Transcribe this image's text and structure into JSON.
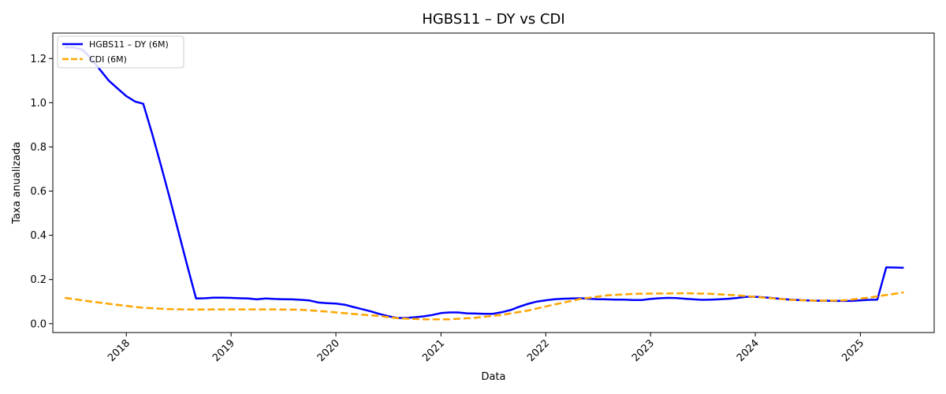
{
  "chart_data": {
    "type": "line",
    "title": "HGBS11 – DY vs CDI",
    "xlabel": "Data",
    "ylabel": "Taxa anualizada",
    "xlim": [
      "2017-04-20",
      "2025-09-15"
    ],
    "ylim": [
      -0.04,
      1.315
    ],
    "x_ticks": [
      "2018",
      "2019",
      "2020",
      "2021",
      "2022",
      "2023",
      "2024",
      "2025"
    ],
    "y_ticks": [
      "0.0",
      "0.2",
      "0.4",
      "0.6",
      "0.8",
      "1.0",
      "1.2"
    ],
    "grid": false,
    "legend_position": "top-left",
    "series": [
      {
        "name": "HGBS11 – DY (6M)",
        "color": "#0000ff",
        "style": "solid",
        "points": [
          [
            "2017-06-01",
            1.25
          ],
          [
            "2017-07-01",
            1.25
          ],
          [
            "2017-08-01",
            1.24
          ],
          [
            "2017-09-01",
            1.2
          ],
          [
            "2017-10-01",
            1.15
          ],
          [
            "2017-11-01",
            1.1
          ],
          [
            "2017-12-01",
            1.065
          ],
          [
            "2018-01-01",
            1.03
          ],
          [
            "2018-02-01",
            1.005
          ],
          [
            "2018-03-01",
            0.995
          ],
          [
            "2018-04-01",
            0.86
          ],
          [
            "2018-05-01",
            0.72
          ],
          [
            "2018-06-01",
            0.57
          ],
          [
            "2018-07-01",
            0.42
          ],
          [
            "2018-08-01",
            0.265
          ],
          [
            "2018-09-01",
            0.114
          ],
          [
            "2018-10-01",
            0.115
          ],
          [
            "2018-11-01",
            0.118
          ],
          [
            "2018-12-01",
            0.118
          ],
          [
            "2019-01-01",
            0.117
          ],
          [
            "2019-02-01",
            0.115
          ],
          [
            "2019-03-01",
            0.114
          ],
          [
            "2019-04-01",
            0.11
          ],
          [
            "2019-05-01",
            0.114
          ],
          [
            "2019-06-01",
            0.112
          ],
          [
            "2019-07-01",
            0.111
          ],
          [
            "2019-08-01",
            0.11
          ],
          [
            "2019-09-01",
            0.108
          ],
          [
            "2019-10-01",
            0.105
          ],
          [
            "2019-11-01",
            0.096
          ],
          [
            "2019-12-01",
            0.093
          ],
          [
            "2020-01-01",
            0.091
          ],
          [
            "2020-02-01",
            0.086
          ],
          [
            "2020-03-01",
            0.076
          ],
          [
            "2020-04-01",
            0.066
          ],
          [
            "2020-05-01",
            0.056
          ],
          [
            "2020-06-01",
            0.044
          ],
          [
            "2020-07-01",
            0.034
          ],
          [
            "2020-08-01",
            0.026
          ],
          [
            "2020-09-01",
            0.026
          ],
          [
            "2020-10-01",
            0.029
          ],
          [
            "2020-11-01",
            0.033
          ],
          [
            "2020-12-01",
            0.039
          ],
          [
            "2021-01-01",
            0.048
          ],
          [
            "2021-02-01",
            0.051
          ],
          [
            "2021-03-01",
            0.051
          ],
          [
            "2021-04-01",
            0.047
          ],
          [
            "2021-05-01",
            0.046
          ],
          [
            "2021-06-01",
            0.045
          ],
          [
            "2021-07-01",
            0.045
          ],
          [
            "2021-08-01",
            0.052
          ],
          [
            "2021-09-01",
            0.062
          ],
          [
            "2021-10-01",
            0.077
          ],
          [
            "2021-11-01",
            0.09
          ],
          [
            "2021-12-01",
            0.1
          ],
          [
            "2022-01-01",
            0.106
          ],
          [
            "2022-02-01",
            0.111
          ],
          [
            "2022-03-01",
            0.113
          ],
          [
            "2022-04-01",
            0.114
          ],
          [
            "2022-05-01",
            0.115
          ],
          [
            "2022-06-01",
            0.113
          ],
          [
            "2022-07-01",
            0.111
          ],
          [
            "2022-08-01",
            0.11
          ],
          [
            "2022-09-01",
            0.109
          ],
          [
            "2022-10-01",
            0.109
          ],
          [
            "2022-11-01",
            0.107
          ],
          [
            "2022-12-01",
            0.107
          ],
          [
            "2023-01-01",
            0.112
          ],
          [
            "2023-02-01",
            0.115
          ],
          [
            "2023-03-01",
            0.117
          ],
          [
            "2023-04-01",
            0.116
          ],
          [
            "2023-05-01",
            0.113
          ],
          [
            "2023-06-01",
            0.11
          ],
          [
            "2023-07-01",
            0.108
          ],
          [
            "2023-08-01",
            0.109
          ],
          [
            "2023-09-01",
            0.111
          ],
          [
            "2023-10-01",
            0.113
          ],
          [
            "2023-11-01",
            0.117
          ],
          [
            "2023-12-01",
            0.122
          ],
          [
            "2024-01-01",
            0.122
          ],
          [
            "2024-02-01",
            0.119
          ],
          [
            "2024-03-01",
            0.116
          ],
          [
            "2024-04-01",
            0.112
          ],
          [
            "2024-05-01",
            0.109
          ],
          [
            "2024-06-01",
            0.107
          ],
          [
            "2024-07-01",
            0.105
          ],
          [
            "2024-08-01",
            0.104
          ],
          [
            "2024-09-01",
            0.104
          ],
          [
            "2024-10-01",
            0.103
          ],
          [
            "2024-11-01",
            0.103
          ],
          [
            "2024-12-01",
            0.103
          ],
          [
            "2025-01-01",
            0.106
          ],
          [
            "2025-02-01",
            0.108
          ],
          [
            "2025-03-01",
            0.109
          ],
          [
            "2025-04-01",
            0.255
          ],
          [
            "2025-05-01",
            0.254
          ],
          [
            "2025-06-01",
            0.253
          ]
        ]
      },
      {
        "name": "CDI (6M)",
        "color": "#ffa500",
        "style": "dashed",
        "points": [
          [
            "2017-06-01",
            0.117
          ],
          [
            "2017-09-01",
            0.1
          ],
          [
            "2017-12-01",
            0.085
          ],
          [
            "2018-03-01",
            0.072
          ],
          [
            "2018-06-01",
            0.066
          ],
          [
            "2018-09-01",
            0.064
          ],
          [
            "2018-12-01",
            0.065
          ],
          [
            "2019-03-01",
            0.065
          ],
          [
            "2019-06-01",
            0.065
          ],
          [
            "2019-09-01",
            0.063
          ],
          [
            "2019-12-01",
            0.055
          ],
          [
            "2020-03-01",
            0.044
          ],
          [
            "2020-06-01",
            0.035
          ],
          [
            "2020-08-01",
            0.025
          ],
          [
            "2020-11-01",
            0.02
          ],
          [
            "2021-02-01",
            0.02
          ],
          [
            "2021-05-01",
            0.027
          ],
          [
            "2021-08-01",
            0.04
          ],
          [
            "2021-11-01",
            0.06
          ],
          [
            "2022-02-01",
            0.087
          ],
          [
            "2022-05-01",
            0.112
          ],
          [
            "2022-08-01",
            0.128
          ],
          [
            "2022-11-01",
            0.135
          ],
          [
            "2023-02-01",
            0.137
          ],
          [
            "2023-05-01",
            0.138
          ],
          [
            "2023-08-01",
            0.135
          ],
          [
            "2023-11-01",
            0.128
          ],
          [
            "2024-02-01",
            0.118
          ],
          [
            "2024-05-01",
            0.108
          ],
          [
            "2024-08-01",
            0.104
          ],
          [
            "2024-11-01",
            0.105
          ],
          [
            "2025-02-01",
            0.118
          ],
          [
            "2025-06-01",
            0.142
          ]
        ]
      }
    ]
  }
}
